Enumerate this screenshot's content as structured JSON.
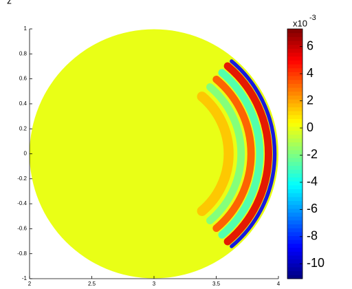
{
  "chart_data": {
    "type": "disc-field",
    "zlabel": "z",
    "xlim": [
      2,
      4
    ],
    "ylim": [
      -1,
      1
    ],
    "xticks": [
      2,
      2.5,
      3,
      3.5,
      4
    ],
    "yticks": [
      1,
      0.8,
      0.6,
      0.4,
      0.2,
      0,
      -0.2,
      -0.4,
      -0.6,
      -0.8,
      -1
    ],
    "disc": {
      "cx": 3,
      "cy": 0,
      "r": 1
    },
    "background_value": 0,
    "rings": [
      {
        "r": 0.97,
        "width": 0.03,
        "value": -9
      },
      {
        "r": 0.92,
        "width": 0.06,
        "value": 5.5
      },
      {
        "r": 0.85,
        "width": 0.06,
        "value": -3
      },
      {
        "r": 0.78,
        "width": 0.06,
        "value": 3.5
      },
      {
        "r": 0.7,
        "width": 0.06,
        "value": -2
      },
      {
        "r": 0.6,
        "width": 0.08,
        "value": 1.5
      }
    ],
    "ring_angle": [
      -50,
      50
    ],
    "colormap": "jet",
    "clim": [
      -11.1,
      7.3
    ],
    "cticks": [
      6,
      4,
      2,
      0,
      -2,
      -4,
      -6,
      -8,
      -10
    ],
    "color_multiplier": {
      "base": "x10",
      "exponent": "-3"
    }
  }
}
